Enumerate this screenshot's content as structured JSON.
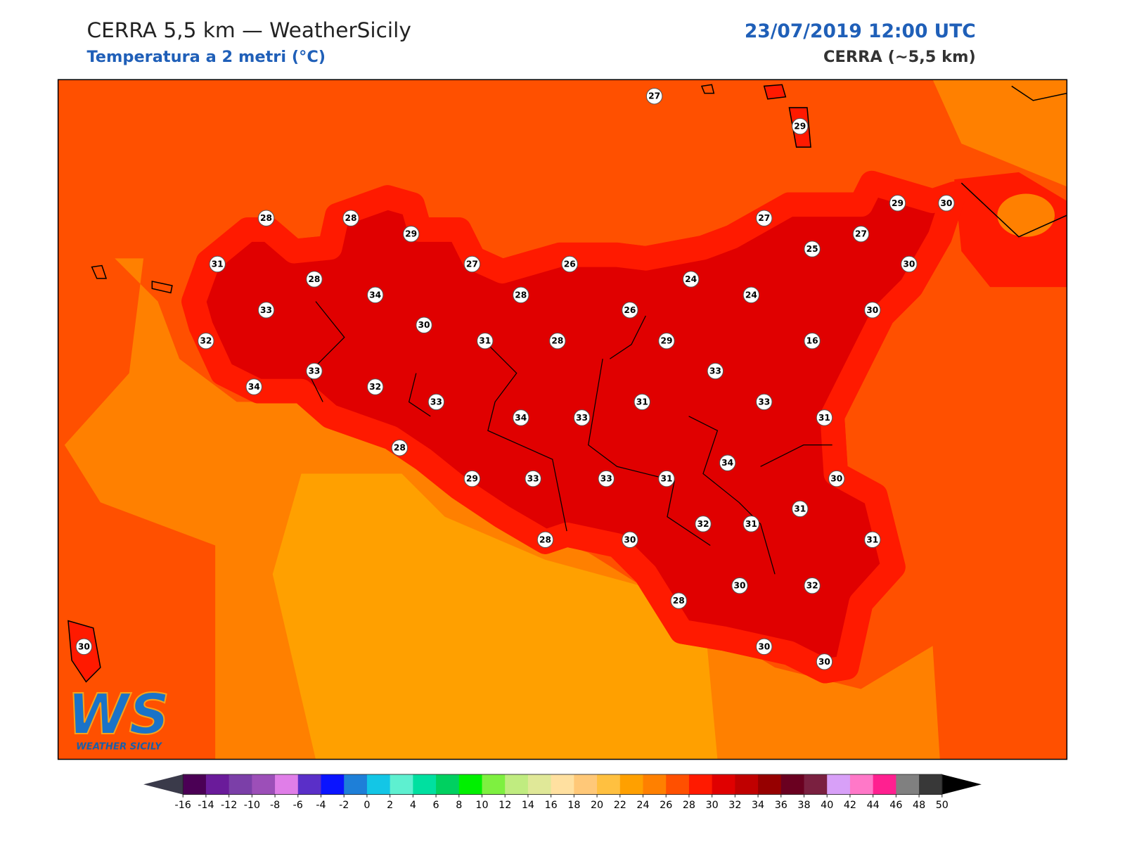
{
  "header": {
    "title": "CERRA 5,5 km — WeatherSicily",
    "subtitle": "Temperatura a 2 metri (°C)",
    "date": "23/07/2019 12:00 UTC",
    "model": "CERRA (~5,5 km)"
  },
  "logo": {
    "mark": "WS",
    "name": "WEATHER SICILY"
  },
  "stations": [
    27,
    29,
    28,
    28,
    29,
    29,
    30,
    27,
    27,
    31,
    27,
    26,
    25,
    30,
    28,
    24,
    34,
    28,
    24,
    33,
    26,
    30,
    30,
    32,
    31,
    28,
    29,
    16,
    33,
    33,
    34,
    32,
    33,
    31,
    33,
    34,
    33,
    31,
    28,
    34,
    29,
    33,
    33,
    31,
    30,
    31,
    32,
    31,
    28,
    30,
    31,
    30,
    32,
    28,
    30,
    30,
    30
  ],
  "colorbar": {
    "ticks": [
      -16,
      -14,
      -12,
      -10,
      -8,
      -6,
      -4,
      -2,
      0,
      2,
      4,
      6,
      8,
      10,
      12,
      14,
      16,
      18,
      20,
      22,
      24,
      26,
      28,
      30,
      32,
      34,
      36,
      38,
      40,
      42,
      44,
      46,
      48,
      50
    ],
    "colors": [
      "#4b0055",
      "#6a1b9a",
      "#7b3fa8",
      "#9c4fb8",
      "#e07ee8",
      "#5a2fc8",
      "#0a14ff",
      "#1e7fd8",
      "#13c6e6",
      "#5ef0d0",
      "#00e0a0",
      "#00d060",
      "#00f000",
      "#7ef040",
      "#c0ec80",
      "#e0e898",
      "#ffe0a0",
      "#ffc878",
      "#ffc040",
      "#ffa000",
      "#ff8000",
      "#ff5000",
      "#ff1a00",
      "#e00000",
      "#c00000",
      "#960000",
      "#6a0020",
      "#7a2040",
      "#d8a0f8",
      "#ff78c8",
      "#ff2090",
      "#808080",
      "#383838"
    ],
    "under_color": "#3a3a4a",
    "over_color": "#000000"
  }
}
